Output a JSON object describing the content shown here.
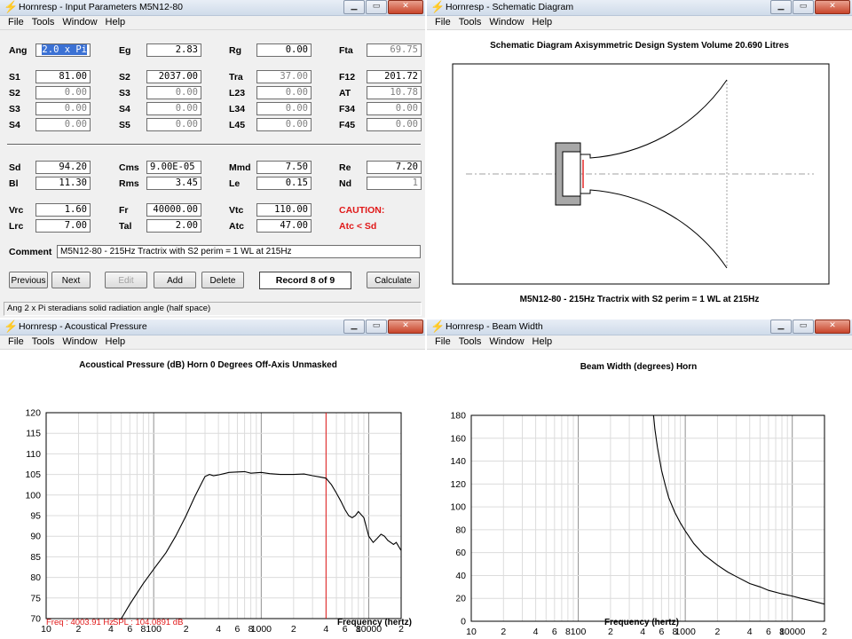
{
  "menu": [
    "File",
    "Tools",
    "Window",
    "Help"
  ],
  "win_input": {
    "title": "Hornresp - Input Parameters   M5N12-80",
    "rows": [
      {
        "cells": [
          {
            "l": "Ang",
            "v": "2.0 x Pi",
            "style": "sel"
          },
          {
            "l": "Eg",
            "v": "2.83"
          },
          {
            "l": "Rg",
            "v": "0.00"
          },
          {
            "l": "Fta",
            "v": "69.75",
            "style": "gray"
          }
        ]
      },
      {
        "cells": [
          {
            "l": "S1",
            "v": "81.00"
          },
          {
            "l": "S2",
            "v": "2037.00"
          },
          {
            "l": "Tra",
            "v": "37.00",
            "style": "gray"
          },
          {
            "l": "F12",
            "v": "201.72"
          }
        ]
      },
      {
        "cells": [
          {
            "l": "S2",
            "v": "0.00",
            "style": "gray"
          },
          {
            "l": "S3",
            "v": "0.00",
            "style": "gray"
          },
          {
            "l": "L23",
            "v": "0.00",
            "style": "gray"
          },
          {
            "l": "AT",
            "v": "10.78",
            "style": "gray"
          }
        ]
      },
      {
        "cells": [
          {
            "l": "S3",
            "v": "0.00",
            "style": "gray"
          },
          {
            "l": "S4",
            "v": "0.00",
            "style": "gray"
          },
          {
            "l": "L34",
            "v": "0.00",
            "style": "gray"
          },
          {
            "l": "F34",
            "v": "0.00",
            "style": "gray"
          }
        ]
      },
      {
        "cells": [
          {
            "l": "S4",
            "v": "0.00",
            "style": "gray"
          },
          {
            "l": "S5",
            "v": "0.00",
            "style": "gray"
          },
          {
            "l": "L45",
            "v": "0.00",
            "style": "gray"
          },
          {
            "l": "F45",
            "v": "0.00",
            "style": "gray"
          }
        ]
      },
      {
        "cells": [
          {
            "l": "Sd",
            "v": "94.20"
          },
          {
            "l": "Cms",
            "v": "9.00E-05",
            "style": "left"
          },
          {
            "l": "Mmd",
            "v": "7.50"
          },
          {
            "l": "Re",
            "v": "7.20"
          }
        ]
      },
      {
        "cells": [
          {
            "l": "Bl",
            "v": "11.30"
          },
          {
            "l": "Rms",
            "v": "3.45"
          },
          {
            "l": "Le",
            "v": "0.15"
          },
          {
            "l": "Nd",
            "v": "1",
            "style": "gray"
          }
        ]
      },
      {
        "cells": [
          {
            "l": "Vrc",
            "v": "1.60"
          },
          {
            "l": "Fr",
            "v": "40000.00"
          },
          {
            "l": "Vtc",
            "v": "110.00"
          },
          {
            "l": "CAUTION:",
            "v": null
          }
        ]
      },
      {
        "cells": [
          {
            "l": "Lrc",
            "v": "7.00"
          },
          {
            "l": "Tal",
            "v": "2.00"
          },
          {
            "l": "Atc",
            "v": "47.00"
          },
          {
            "l": "Atc < Sd",
            "v": null
          }
        ]
      }
    ],
    "comment_label": "Comment",
    "comment": "M5N12-80 - 215Hz Tractrix  with S2 perim = 1 WL at 215Hz",
    "buttons": {
      "previous": "Previous",
      "next": "Next",
      "edit": "Edit",
      "add": "Add",
      "delete": "Delete",
      "calculate": "Calculate"
    },
    "record": "Record 8 of 9",
    "status": "Ang   2 x Pi steradians solid radiation angle  (half space)"
  },
  "win_schematic": {
    "title": "Hornresp - Schematic Diagram",
    "heading": "Schematic Diagram   Axisymmetric Design   System Volume 20.690 Litres",
    "caption": "M5N12-80 - 215Hz Tractrix  with S2 perim = 1 WL at 215Hz"
  },
  "win_acoustic": {
    "title": "Hornresp - Acoustical Pressure",
    "readout_freq": "Freq : 4003.91 Hz",
    "readout_spl": "SPL : 104.0891 dB",
    "chart_data": {
      "type": "line",
      "title": "Acoustical Pressure (dB)   Horn   0 Degrees Off-Axis   Unmasked",
      "xlabel": "Frequency (hertz)",
      "ylabel": "",
      "xscale": "log",
      "xlim": [
        10,
        20000
      ],
      "ylim": [
        70,
        120
      ],
      "yticks": [
        70,
        75,
        80,
        85,
        90,
        95,
        100,
        105,
        110,
        115,
        120
      ],
      "xtick_labels": [
        {
          "x": 10,
          "t": "10"
        },
        {
          "x": 20,
          "t": "2"
        },
        {
          "x": 40,
          "t": "4"
        },
        {
          "x": 60,
          "t": "6"
        },
        {
          "x": 80,
          "t": "8"
        },
        {
          "x": 100,
          "t": "100"
        },
        {
          "x": 200,
          "t": "2"
        },
        {
          "x": 400,
          "t": "4"
        },
        {
          "x": 600,
          "t": "6"
        },
        {
          "x": 800,
          "t": "8"
        },
        {
          "x": 1000,
          "t": "1000"
        },
        {
          "x": 2000,
          "t": "2"
        },
        {
          "x": 4000,
          "t": "4"
        },
        {
          "x": 6000,
          "t": "6"
        },
        {
          "x": 8000,
          "t": "8"
        },
        {
          "x": 10000,
          "t": "10000"
        },
        {
          "x": 20000,
          "t": "2"
        }
      ],
      "grid": true,
      "cursor_x": 4003.91,
      "cursor_color": "#e01818",
      "series": [
        {
          "x": [
            50,
            60,
            80,
            100,
            130,
            160,
            200,
            240,
            280,
            300,
            330,
            360,
            400,
            450,
            500,
            600,
            700,
            800,
            1000,
            1200,
            1500,
            2000,
            2500,
            3000,
            3500,
            4000,
            4500,
            5000,
            5500,
            6000,
            6500,
            7000,
            7500,
            8000,
            9000,
            10000,
            11000,
            12000,
            13000,
            14000,
            15000,
            17000,
            18000,
            20000
          ],
          "y": [
            70.0,
            73.5,
            78.5,
            82.0,
            86.0,
            90.0,
            95.0,
            99.5,
            103.0,
            104.5,
            105.0,
            104.7,
            104.9,
            105.2,
            105.5,
            105.6,
            105.7,
            105.3,
            105.5,
            105.2,
            105.0,
            105.0,
            105.1,
            104.7,
            104.4,
            104.1,
            102.5,
            100.5,
            98.5,
            96.5,
            95.0,
            94.5,
            95.0,
            96.0,
            94.5,
            90.0,
            88.5,
            89.5,
            90.5,
            90.0,
            89.0,
            88.0,
            88.5,
            86.5
          ]
        }
      ]
    }
  },
  "win_beam": {
    "title": "Hornresp - Beam Width",
    "chart_data": {
      "type": "line",
      "title": "Beam Width (degrees)   Horn",
      "xlabel": "Frequency (hertz)",
      "ylabel": "",
      "xscale": "log",
      "xlim": [
        10,
        20000
      ],
      "ylim": [
        0,
        180
      ],
      "yticks": [
        0,
        20,
        40,
        60,
        80,
        100,
        120,
        140,
        160,
        180
      ],
      "xtick_labels": [
        {
          "x": 10,
          "t": "10"
        },
        {
          "x": 20,
          "t": "2"
        },
        {
          "x": 40,
          "t": "4"
        },
        {
          "x": 60,
          "t": "6"
        },
        {
          "x": 80,
          "t": "8"
        },
        {
          "x": 100,
          "t": "100"
        },
        {
          "x": 200,
          "t": "2"
        },
        {
          "x": 400,
          "t": "4"
        },
        {
          "x": 600,
          "t": "6"
        },
        {
          "x": 800,
          "t": "8"
        },
        {
          "x": 1000,
          "t": "1000"
        },
        {
          "x": 2000,
          "t": "2"
        },
        {
          "x": 4000,
          "t": "4"
        },
        {
          "x": 6000,
          "t": "6"
        },
        {
          "x": 8000,
          "t": "8"
        },
        {
          "x": 10000,
          "t": "10000"
        },
        {
          "x": 20000,
          "t": "2"
        }
      ],
      "grid": true,
      "series": [
        {
          "x": [
            505,
            520,
            550,
            600,
            650,
            700,
            800,
            900,
            1000,
            1200,
            1500,
            2000,
            2500,
            3000,
            4000,
            5000,
            6000,
            8000,
            10000,
            12000,
            15000,
            20000
          ],
          "y": [
            180,
            168,
            152,
            132,
            119,
            108,
            95,
            86,
            79,
            68,
            58,
            49,
            43,
            39,
            33,
            30,
            27,
            24,
            22,
            20,
            18,
            15
          ]
        }
      ]
    }
  }
}
